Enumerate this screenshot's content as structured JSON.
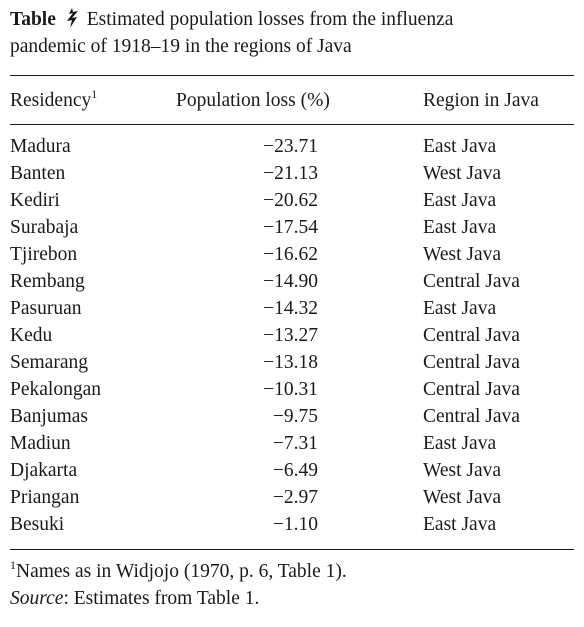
{
  "caption": {
    "label": "Table",
    "text_line1": "Estimated population losses from the influenza",
    "text_line2": "pandemic of 1918–19 in the regions of Java"
  },
  "table": {
    "headers": {
      "residency": "Residency",
      "residency_note": "1",
      "population_loss": "Population loss (%)",
      "region": "Region in Java"
    },
    "rows": [
      {
        "residency": "Madura",
        "loss": "−23.71",
        "region": "East Java"
      },
      {
        "residency": "Banten",
        "loss": "−21.13",
        "region": "West Java"
      },
      {
        "residency": "Kediri",
        "loss": "−20.62",
        "region": "East Java"
      },
      {
        "residency": "Surabaja",
        "loss": "−17.54",
        "region": "East Java"
      },
      {
        "residency": "Tjirebon",
        "loss": "−16.62",
        "region": "West Java"
      },
      {
        "residency": "Rembang",
        "loss": "−14.90",
        "region": "Central Java"
      },
      {
        "residency": "Pasuruan",
        "loss": "−14.32",
        "region": "East Java"
      },
      {
        "residency": "Kedu",
        "loss": "−13.27",
        "region": "Central Java"
      },
      {
        "residency": "Semarang",
        "loss": "−13.18",
        "region": "Central Java"
      },
      {
        "residency": "Pekalongan",
        "loss": "−10.31",
        "region": "Central Java"
      },
      {
        "residency": "Banjumas",
        "loss": "−9.75",
        "region": "Central Java"
      },
      {
        "residency": "Madiun",
        "loss": "−7.31",
        "region": "East Java"
      },
      {
        "residency": "Djakarta",
        "loss": "−6.49",
        "region": "West Java"
      },
      {
        "residency": "Priangan",
        "loss": "−2.97",
        "region": "West Java"
      },
      {
        "residency": "Besuki",
        "loss": "−1.10",
        "region": "East Java"
      }
    ]
  },
  "footnote": {
    "marker": "1",
    "text": "Names as in Widjojo (1970, p. 6, Table 1)."
  },
  "source": {
    "label": "Source",
    "text": ": Estimates from Table 1."
  },
  "icons": {
    "table_number": "table-number-glyph-icon"
  }
}
